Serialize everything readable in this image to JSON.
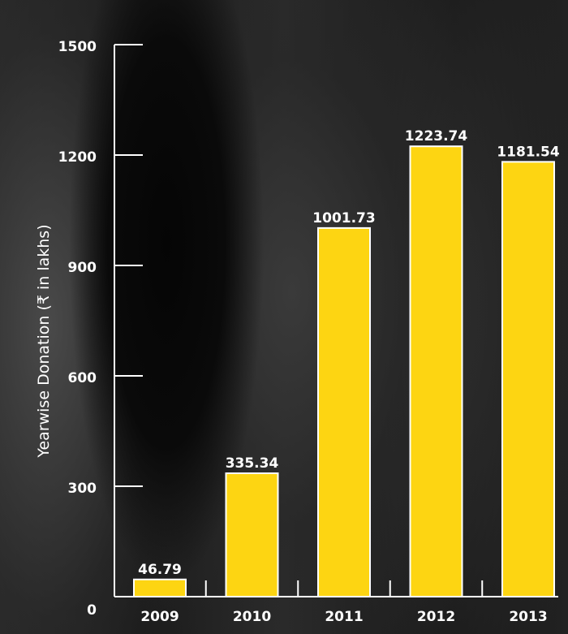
{
  "chart_data": {
    "type": "bar",
    "categories": [
      "2009",
      "2010",
      "2011",
      "2012",
      "2013"
    ],
    "values": [
      46.79,
      335.34,
      1001.73,
      1223.74,
      1181.54
    ],
    "value_labels": [
      "46.79",
      "335.34",
      "1001.73",
      "1223.74",
      "1181.54"
    ],
    "ylabel": "Yearwise Donation  (₹ in lakhs)",
    "yticks": [
      0,
      300,
      600,
      900,
      1200,
      1500
    ],
    "ytick_labels": [
      "0",
      "300",
      "600",
      "900",
      "1200",
      "1500"
    ],
    "ylim": [
      0,
      1500
    ],
    "grid": false,
    "colors": {
      "bar": "#FDD512",
      "bar_outline": "#ffffff",
      "axis": "#ffffff",
      "text": "#ffffff"
    }
  }
}
